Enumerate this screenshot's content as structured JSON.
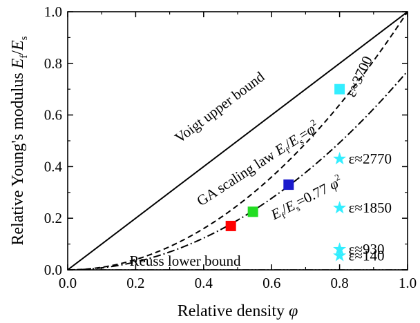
{
  "chart_data": {
    "type": "line",
    "xlabel": "Relative density φ",
    "ylabel": "Relative Young's modulus Ef/Es",
    "xlim": [
      0.0,
      1.0
    ],
    "ylim": [
      0.0,
      1.0
    ],
    "xticks": [
      "0.0",
      "0.2",
      "0.4",
      "0.6",
      "0.8",
      "1.0"
    ],
    "yticks": [
      "0.0",
      "0.2",
      "0.4",
      "0.6",
      "0.8",
      "1.0"
    ],
    "grid": false,
    "series": [
      {
        "label": "Voigt upper bound",
        "style": "solid",
        "formula": "y = φ",
        "x": [
          0.0,
          1.0
        ],
        "y": [
          0.0,
          1.0
        ]
      },
      {
        "label": "GA scaling law Ef/Es=φ²",
        "style": "dashed",
        "formula": "y = φ²",
        "coefficient": 1.0
      },
      {
        "label": "Ef/Es=0.77 φ²",
        "style": "dashdot",
        "formula": "y = 0.77 φ²",
        "coefficient": 0.77
      },
      {
        "label": "Reuss lower bound",
        "style": "dashdotdot",
        "formula": "y ≈ 0",
        "x": [
          0.0,
          1.0
        ],
        "y": [
          0.0,
          0.0
        ]
      }
    ],
    "squares": [
      {
        "x": 0.48,
        "y": 0.17,
        "color": "#ff0000"
      },
      {
        "x": 0.545,
        "y": 0.225,
        "color": "#22dd22"
      },
      {
        "x": 0.65,
        "y": 0.33,
        "color": "#1a1acc"
      },
      {
        "x": 0.8,
        "y": 0.7,
        "color": "#33eeff"
      }
    ],
    "stars": [
      {
        "x": 0.8,
        "y": 0.43,
        "label": "ε≈2770"
      },
      {
        "x": 0.8,
        "y": 0.24,
        "label": "ε≈1850"
      },
      {
        "x": 0.8,
        "y": 0.08,
        "label": "ε≈930"
      },
      {
        "x": 0.8,
        "y": 0.055,
        "label": "ε≈140"
      }
    ],
    "annotations": [
      {
        "text": "ε≈3700"
      }
    ],
    "star_color": "#33eeff"
  }
}
